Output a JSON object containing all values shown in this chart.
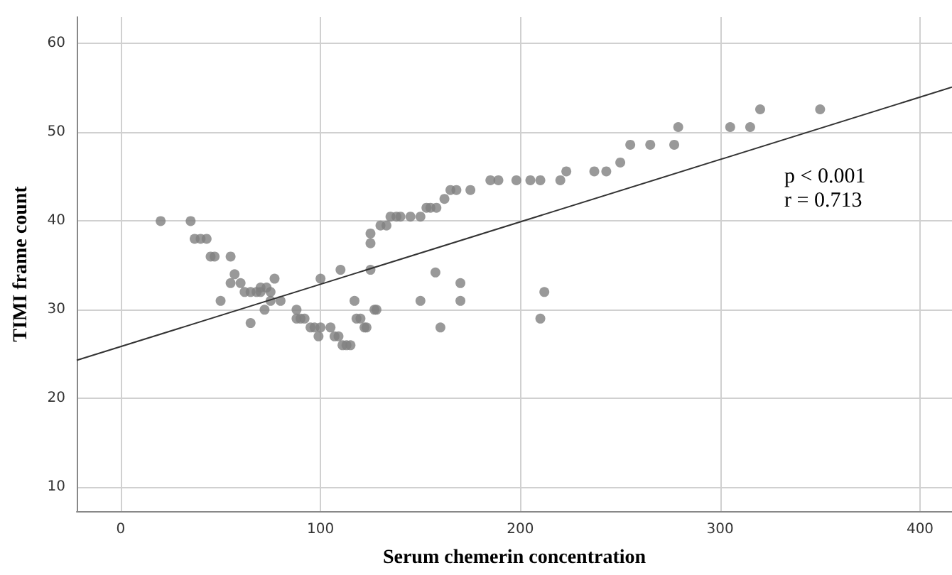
{
  "chart_data": {
    "type": "scatter",
    "xlabel": "Serum chemerin concentration",
    "ylabel": "TIMI frame count",
    "annotations": [
      "p < 0.001",
      "r = 0.713"
    ],
    "xlim": [
      -22,
      416
    ],
    "ylim": [
      7.3,
      63
    ],
    "xticks": [
      0,
      100,
      200,
      300,
      400
    ],
    "yticks": [
      10,
      20,
      30,
      40,
      50,
      60
    ],
    "grid": true,
    "marker": "circle",
    "series": [
      {
        "color": "#7f7f7f",
        "x": [
          20,
          35,
          37,
          40,
          43,
          45,
          47,
          50,
          55,
          55,
          57,
          60,
          62,
          65,
          65,
          68,
          70,
          70,
          72,
          73,
          75,
          75,
          77,
          80,
          88,
          88,
          90,
          92,
          95,
          97,
          99,
          100,
          100,
          105,
          107,
          109,
          110,
          111,
          113,
          115,
          117,
          118,
          120,
          122,
          123,
          125,
          125,
          125,
          127,
          128,
          130,
          133,
          135,
          138,
          140,
          145,
          150,
          150,
          153,
          155,
          158,
          157.5,
          160,
          162,
          165,
          168,
          170,
          170,
          175,
          185,
          189,
          198,
          205,
          210,
          212,
          210,
          220,
          223,
          237,
          243,
          250,
          255,
          265,
          277,
          279,
          305,
          315,
          320,
          350
        ],
        "values": [
          40,
          40,
          38,
          38,
          38,
          36,
          36,
          31,
          36,
          33,
          34,
          33,
          32,
          28.5,
          32,
          32,
          32,
          32.5,
          30,
          32.5,
          31,
          32,
          33.5,
          31,
          30,
          29,
          29,
          29,
          28,
          28,
          27,
          28,
          33.5,
          28,
          27,
          27,
          34.5,
          26,
          26,
          26,
          31,
          29,
          29,
          28,
          28,
          38.6,
          37.5,
          34.5,
          30,
          30,
          39.5,
          39.5,
          40.5,
          40.5,
          40.5,
          40.5,
          40.5,
          31,
          41.5,
          41.5,
          41.5,
          34.2,
          28,
          42.5,
          43.5,
          43.5,
          33,
          31,
          43.5,
          44.6,
          44.6,
          44.6,
          44.6,
          29,
          32,
          44.6,
          44.6,
          45.6,
          45.6,
          45.6,
          46.6,
          48.6,
          48.6,
          48.6,
          50.6,
          50.6,
          50.6,
          52.6,
          52.6
        ]
      },
      {
        "type": "line",
        "color": "#333333",
        "marker": "none",
        "x": [
          -22,
          416
        ],
        "values": [
          24.3,
          55.1
        ]
      }
    ]
  }
}
